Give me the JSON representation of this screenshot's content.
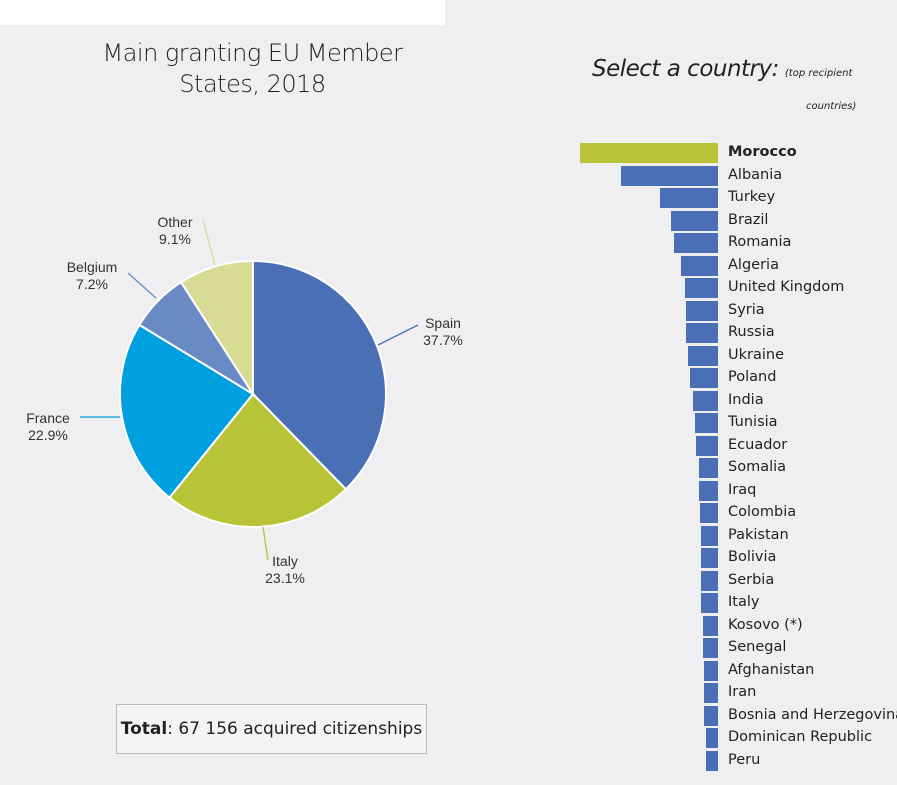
{
  "header": {
    "pie_title_line1": "Main granting EU Member",
    "pie_title_line2": "States, 2018",
    "select_label": "Select a country:",
    "select_note1": "(top recipient",
    "select_note2": "countries)"
  },
  "total": {
    "label": "Total",
    "value": ": 67 156 acquired citizenships"
  },
  "colors": {
    "Spain": "#4a6fb5",
    "Italy": "#b8c337",
    "France": "#009fdf",
    "Belgium": "#6a8ac6",
    "Other": "#d8db93",
    "bar": "#4a6fb5",
    "bar_selected": "#b8c337"
  },
  "chart_data": [
    {
      "type": "pie",
      "title": "Main granting EU Member States, 2018",
      "slices": [
        {
          "label": "Spain",
          "value": 37.7,
          "text": "37.7%"
        },
        {
          "label": "Italy",
          "value": 23.1,
          "text": "23.1%"
        },
        {
          "label": "France",
          "value": 22.9,
          "text": "22.9%"
        },
        {
          "label": "Belgium",
          "value": 7.2,
          "text": "7.2%"
        },
        {
          "label": "Other",
          "value": 9.1,
          "text": "9.1%"
        }
      ]
    },
    {
      "type": "bar",
      "orientation": "horizontal",
      "title": "Select a country: (top recipient countries)",
      "selected": "Morocco",
      "note": "relative bar lengths, no axis shown",
      "categories": [
        "Morocco",
        "Albania",
        "Turkey",
        "Brazil",
        "Romania",
        "Algeria",
        "United Kingdom",
        "Syria",
        "Russia",
        "Ukraine",
        "Poland",
        "India",
        "Tunisia",
        "Ecuador",
        "Somalia",
        "Iraq",
        "Colombia",
        "Pakistan",
        "Bolivia",
        "Serbia",
        "Italy",
        "Kosovo (*)",
        "Senegal",
        "Afghanistan",
        "Iran",
        "Bosnia and Herzegovina",
        "Dominican Republic",
        "Peru"
      ],
      "values": [
        100,
        70,
        42,
        34,
        32,
        27,
        24,
        23,
        23,
        22,
        20,
        18,
        17,
        16,
        14,
        14,
        13,
        12,
        12,
        12,
        12,
        11,
        11,
        10,
        10,
        10,
        9,
        9
      ]
    }
  ]
}
